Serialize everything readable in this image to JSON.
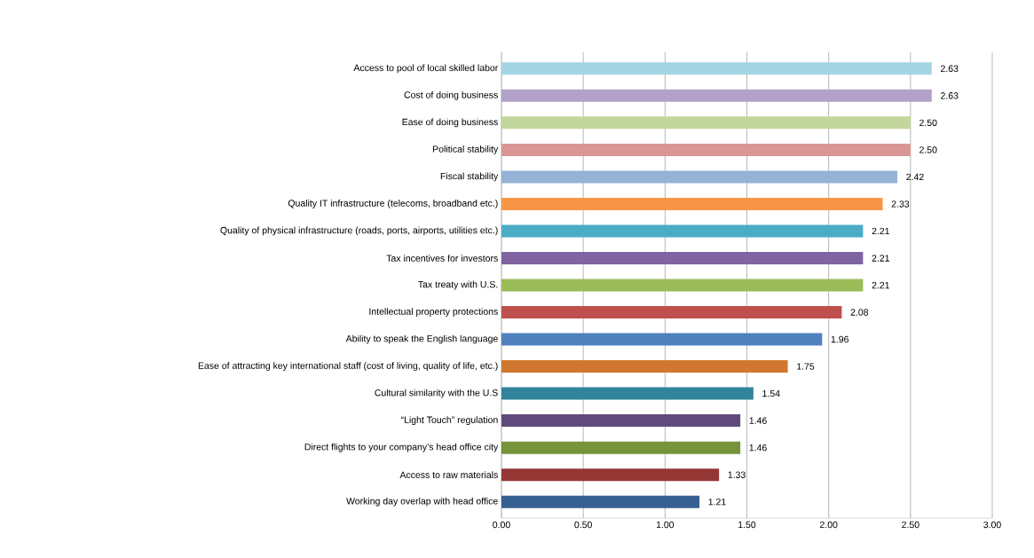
{
  "chart_data": {
    "type": "bar",
    "orientation": "horizontal",
    "categories": [
      "Access to pool of local skilled labor",
      "Cost of doing business",
      "Ease of doing business",
      "Political stability",
      "Fiscal stability",
      "Quality IT infrastructure (telecoms, broadband etc.)",
      "Quality of physical infrastructure (roads, ports, airports, utilities etc.)",
      "Tax incentives for investors",
      "Tax treaty with U.S.",
      "Intellectual property protections",
      "Ability to speak the English language",
      "Ease of attracting key international staff (cost of living, quality of life, etc.)",
      "Cultural similarity with the U.S",
      "“Light Touch” regulation",
      "Direct flights to your company’s head office city",
      "Access to raw materials",
      "Working day overlap with head office"
    ],
    "values": [
      2.63,
      2.63,
      2.5,
      2.5,
      2.42,
      2.33,
      2.21,
      2.21,
      2.21,
      2.08,
      1.96,
      1.75,
      1.54,
      1.46,
      1.46,
      1.33,
      1.21
    ],
    "value_labels": [
      "2.63",
      "2.63",
      "2.50",
      "2.50",
      "2.42",
      "2.33",
      "2.21",
      "2.21",
      "2.21",
      "2.08",
      "1.96",
      "1.75",
      "1.54",
      "1.46",
      "1.46",
      "1.33",
      "1.21"
    ],
    "colors": [
      "#a5d5e2",
      "#b3a2c7",
      "#c3d69b",
      "#d99694",
      "#95b3d7",
      "#f79646",
      "#4bacc6",
      "#8064a2",
      "#9bbb59",
      "#c0504d",
      "#4f81bd",
      "#d0782f",
      "#31849b",
      "#604a7b",
      "#77933c",
      "#953735",
      "#376092"
    ],
    "xlim": [
      0,
      3
    ],
    "xticks": [
      {
        "value": 0,
        "label": "0.00"
      },
      {
        "value": 0.5,
        "label": "0.50"
      },
      {
        "value": 1,
        "label": "1.00"
      },
      {
        "value": 1.5,
        "label": "1.50"
      },
      {
        "value": 2,
        "label": "2.00"
      },
      {
        "value": 2.5,
        "label": "2.50"
      },
      {
        "value": 3,
        "label": "3.00"
      }
    ],
    "grid": "x"
  }
}
